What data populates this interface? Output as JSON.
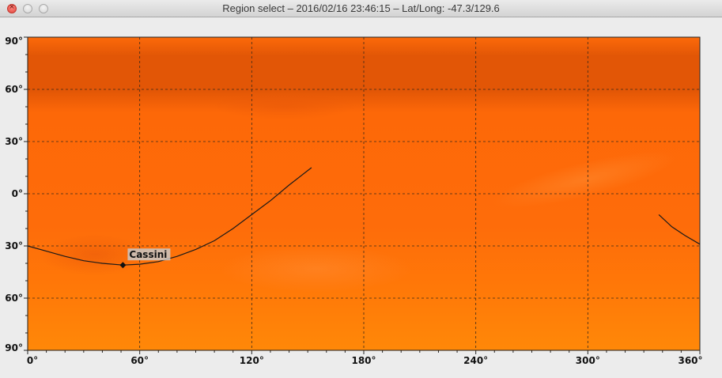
{
  "window": {
    "title": "Region select – 2016/02/16 23:46:15 – Lat/Long: -47.3/129.6"
  },
  "map": {
    "lat_ticks": [
      {
        "value": 90,
        "label": "90°"
      },
      {
        "value": 60,
        "label": "60°"
      },
      {
        "value": 30,
        "label": "30°"
      },
      {
        "value": 0,
        "label": "0°"
      },
      {
        "value": -30,
        "label": "30°"
      },
      {
        "value": -60,
        "label": "60°"
      },
      {
        "value": -90,
        "label": "90°"
      }
    ],
    "lon_ticks": [
      {
        "value": 0,
        "label": "0°"
      },
      {
        "value": 60,
        "label": "60°"
      },
      {
        "value": 120,
        "label": "120°"
      },
      {
        "value": 180,
        "label": "180°"
      },
      {
        "value": 240,
        "label": "240°"
      },
      {
        "value": 300,
        "label": "300°"
      },
      {
        "value": 360,
        "label": "360°"
      }
    ],
    "lon_range": [
      0,
      360
    ],
    "lat_range": [
      -90,
      90
    ],
    "grid": true,
    "colors": {
      "map_base": "#fe6a0a",
      "map_dark_band": "#e25606",
      "map_bottom": "#ff8208",
      "grid": "#3a2a1a",
      "track": "#1a1a1a"
    },
    "spacecraft": {
      "name": "Cassini",
      "lon": 51,
      "lat": -41
    },
    "track_segments": [
      [
        [
          0,
          -30
        ],
        [
          10,
          -33
        ],
        [
          20,
          -36
        ],
        [
          30,
          -38.5
        ],
        [
          40,
          -40
        ],
        [
          51,
          -41
        ],
        [
          60,
          -40.5
        ],
        [
          70,
          -39
        ],
        [
          80,
          -36
        ],
        [
          90,
          -32
        ],
        [
          100,
          -27
        ],
        [
          110,
          -20
        ],
        [
          120,
          -12
        ],
        [
          130,
          -4
        ],
        [
          140,
          5
        ],
        [
          152,
          15
        ]
      ],
      [
        [
          338,
          -12
        ],
        [
          345,
          -19
        ],
        [
          352,
          -24
        ],
        [
          360,
          -29
        ]
      ]
    ]
  }
}
